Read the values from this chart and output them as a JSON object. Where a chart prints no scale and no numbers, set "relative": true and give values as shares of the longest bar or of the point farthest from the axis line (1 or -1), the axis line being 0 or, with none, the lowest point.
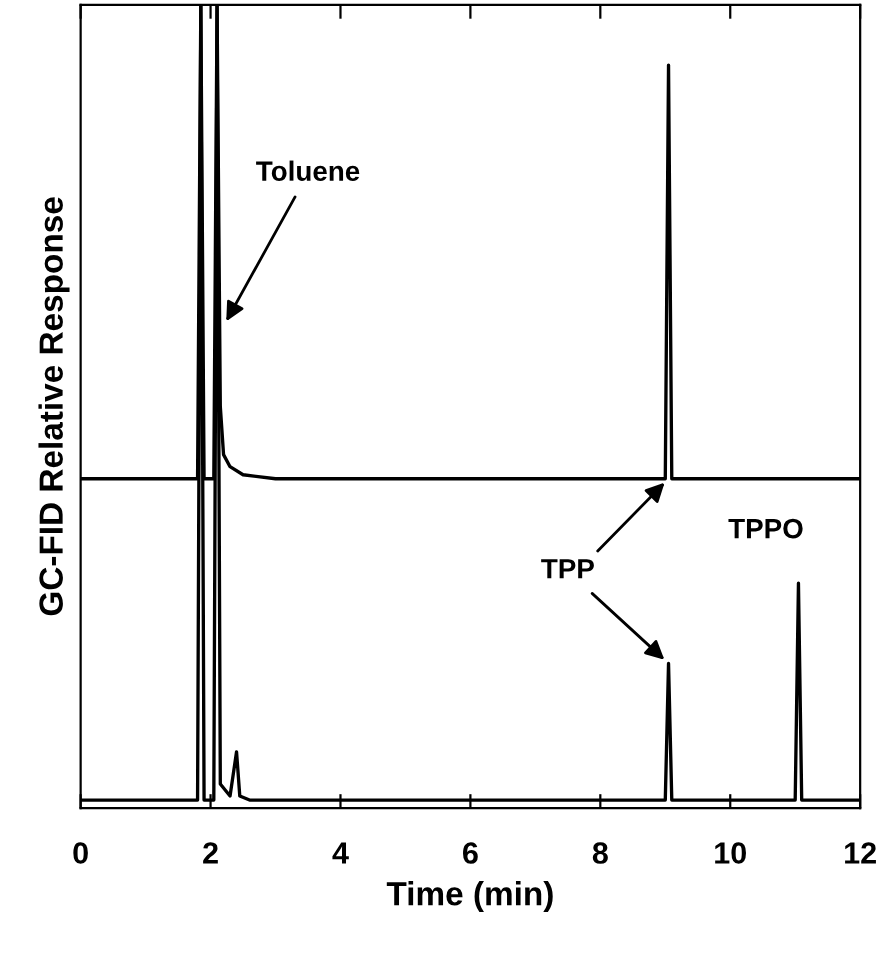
{
  "chart_data": {
    "type": "line",
    "relative": true,
    "xlabel": "Time (min)",
    "ylabel": "GC-FID Relative Response",
    "xlim": [
      0,
      12
    ],
    "xticks": [
      0,
      2,
      4,
      6,
      8,
      10,
      12
    ],
    "grid": false,
    "marker": "none",
    "line_style": "solid",
    "series": [
      {
        "color": "#000000",
        "x": [
          0,
          1.8,
          1.85,
          1.9,
          1.95,
          2.05,
          2.1,
          2.15,
          2.2,
          2.3,
          2.5,
          3,
          9.0,
          9.05,
          9.1,
          12
        ],
        "values": [
          0.41,
          0.41,
          1,
          0.41,
          0.41,
          0.41,
          1,
          0.5,
          0.44,
          0.425,
          0.415,
          0.41,
          0.41,
          0.925,
          0.41,
          0.41
        ]
      },
      {
        "color": "#000000",
        "x": [
          0,
          1.8,
          1.85,
          1.9,
          1.95,
          2.05,
          2.1,
          2.15,
          2.3,
          2.4,
          2.45,
          2.6,
          9.0,
          9.05,
          9.1,
          11.0,
          11.05,
          11.1,
          12
        ],
        "values": [
          0.01,
          0.01,
          1,
          0.01,
          0.01,
          0.01,
          1,
          0.03,
          0.015,
          0.07,
          0.015,
          0.01,
          0.01,
          0.18,
          0.01,
          0.01,
          0.28,
          0.01,
          0.01
        ]
      }
    ],
    "annotations": [
      {
        "text": "Toluene",
        "x": 2.2,
        "y": 0.6
      },
      {
        "text": "TPP",
        "x": 9.05,
        "y": 0.18
      },
      {
        "text": "TPPO",
        "x": 11.05,
        "y": 0.28
      }
    ]
  }
}
